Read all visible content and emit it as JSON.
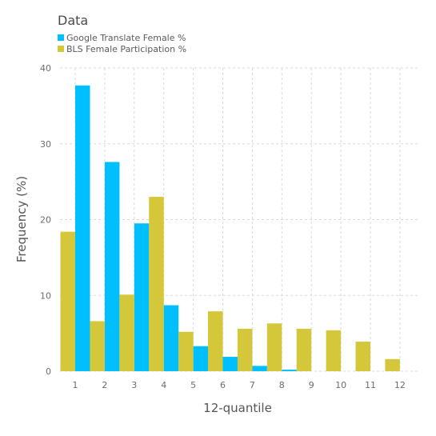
{
  "chart_data": {
    "type": "bar",
    "legend_title": "Data",
    "legend_placement": "top-left",
    "xlabel": "12-quantile",
    "ylabel": "Frequency (%)",
    "categories": [
      "1",
      "2",
      "3",
      "4",
      "5",
      "6",
      "7",
      "8",
      "9",
      "10",
      "11",
      "12"
    ],
    "ylim": [
      0,
      40
    ],
    "yticks": [
      0,
      10,
      20,
      30,
      40
    ],
    "grid": true,
    "series": [
      {
        "name": "Google Translate Female %",
        "color": "#00bfff",
        "values": [
          37.7,
          27.6,
          19.5,
          8.7,
          3.3,
          1.9,
          0.7,
          0.2,
          0,
          0,
          0,
          0
        ]
      },
      {
        "name": "BLS Female Participation %",
        "color": "#d4c83a",
        "values": [
          18.4,
          6.6,
          10.1,
          23.0,
          5.2,
          7.9,
          5.6,
          6.3,
          5.6,
          5.4,
          3.9,
          1.6
        ]
      }
    ]
  }
}
